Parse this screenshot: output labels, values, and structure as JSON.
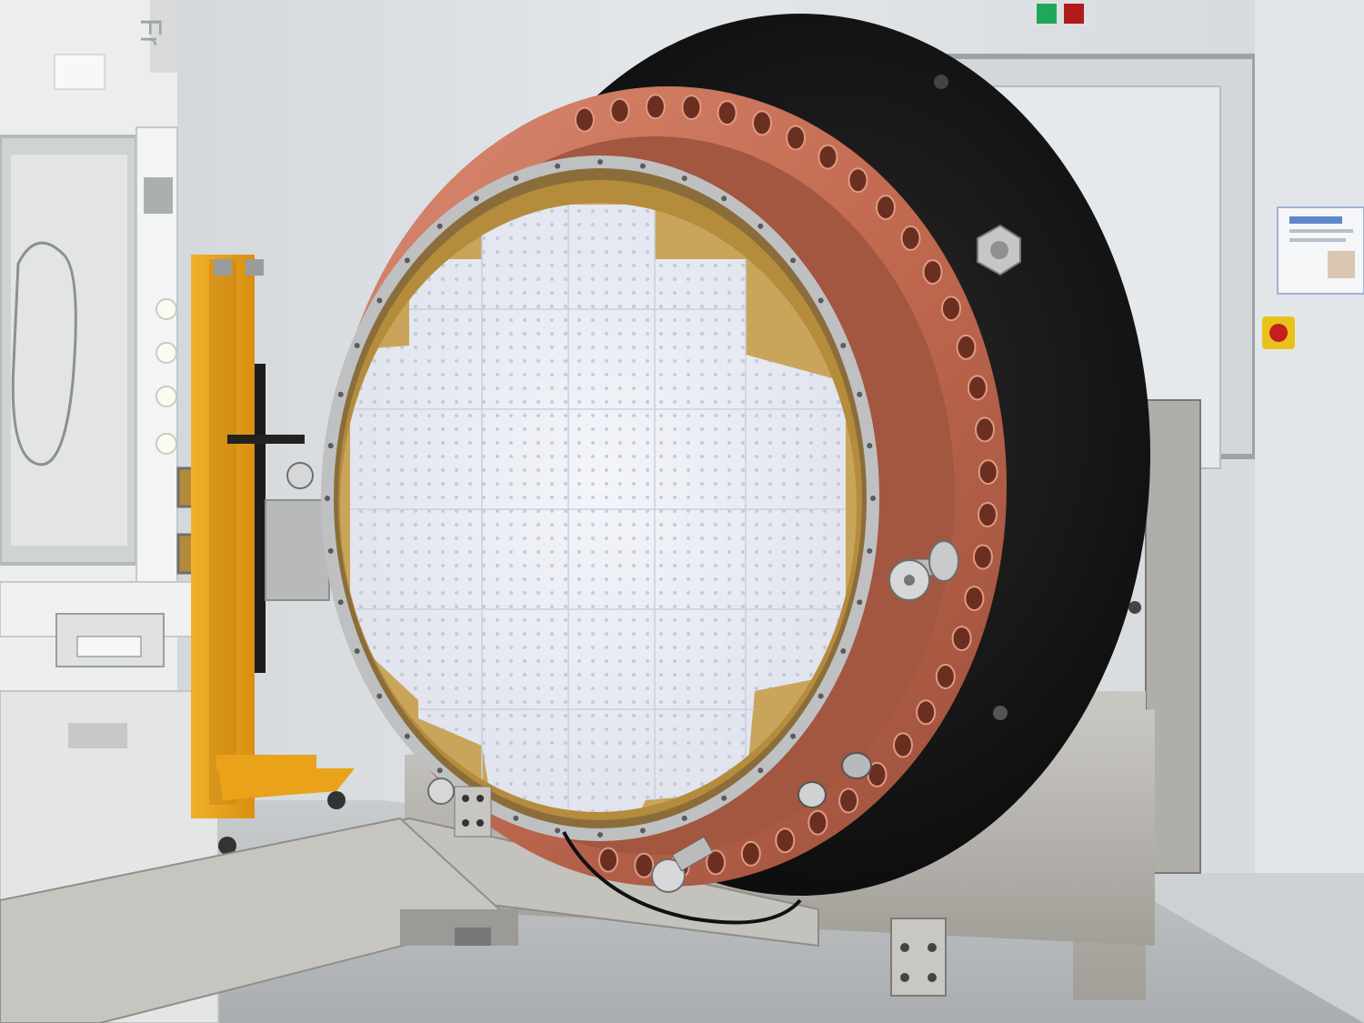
{
  "scene": {
    "cabinet_brand_text": "Fr",
    "exit_light_colors": {
      "green": "#1fa85a",
      "red": "#b01c1c"
    },
    "colors": {
      "wall": "#dfe2e5",
      "floor": "#b9bdbf",
      "copper": "#c8715a",
      "copper_dark": "#8e4634",
      "black_flange": "#141414",
      "focal_plane": "#eef0f6",
      "stainless": "#b6b4af",
      "yellow_lift": "#e9a21a",
      "cabinet_white": "#eceeee"
    }
  }
}
